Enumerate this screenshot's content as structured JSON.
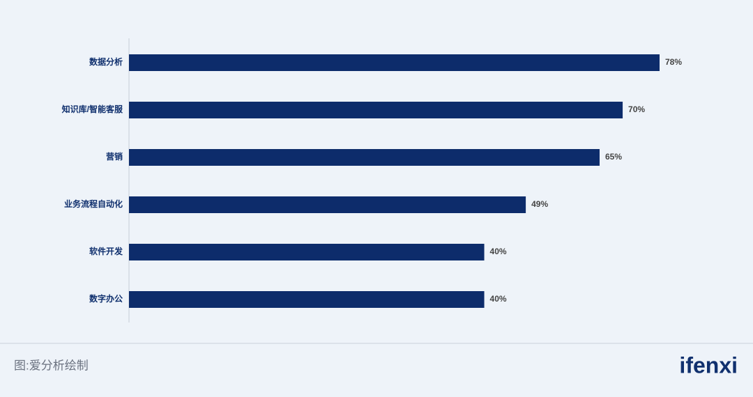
{
  "chart_data": {
    "type": "hbar",
    "categories": [
      "数据分析",
      "知识库/智能客服",
      "营销",
      "业务流程自动化",
      "软件开发",
      "数字办公"
    ],
    "values": [
      78,
      70,
      65,
      49,
      40,
      40
    ],
    "value_labels": [
      "78%",
      "70%",
      "65%",
      "49%",
      "40%",
      "40%"
    ],
    "color": "#0d2c6b",
    "xlim": [
      -37,
      78
    ]
  },
  "footer": {
    "source": "图:爱分析绘制",
    "logo": "ifenxi"
  }
}
